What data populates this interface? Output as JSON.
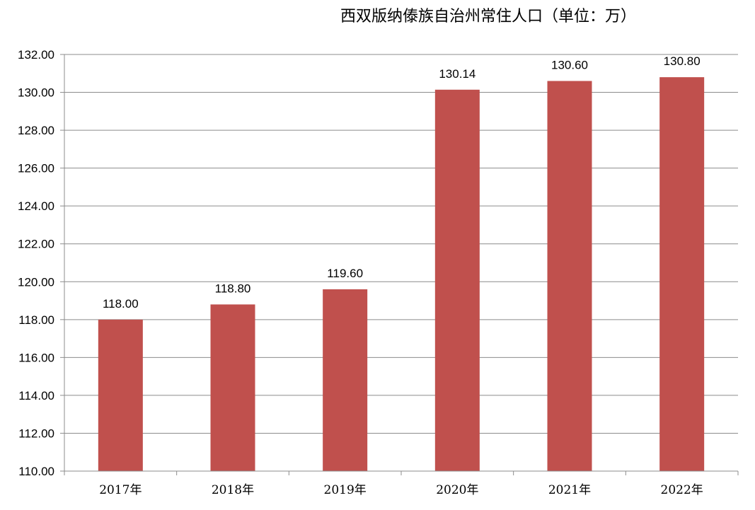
{
  "chart_data": {
    "type": "bar",
    "title": "西双版纳傣族自治州常住人口（单位：万）",
    "categories": [
      "2017年",
      "2018年",
      "2019年",
      "2020年",
      "2021年",
      "2022年"
    ],
    "values": [
      118.0,
      118.8,
      119.6,
      130.14,
      130.6,
      130.8
    ],
    "data_labels": [
      "118.00",
      "118.80",
      "119.60",
      "130.14",
      "130.60",
      "130.80"
    ],
    "ylim": [
      110,
      132
    ],
    "y_ticks": [
      110,
      112,
      114,
      116,
      118,
      120,
      122,
      124,
      126,
      128,
      130,
      132
    ],
    "y_tick_labels": [
      "110.00",
      "112.00",
      "114.00",
      "116.00",
      "118.00",
      "120.00",
      "122.00",
      "124.00",
      "126.00",
      "128.00",
      "130.00",
      "132.00"
    ],
    "grid": true,
    "legend": "none",
    "bar_color": "#c0504d"
  }
}
